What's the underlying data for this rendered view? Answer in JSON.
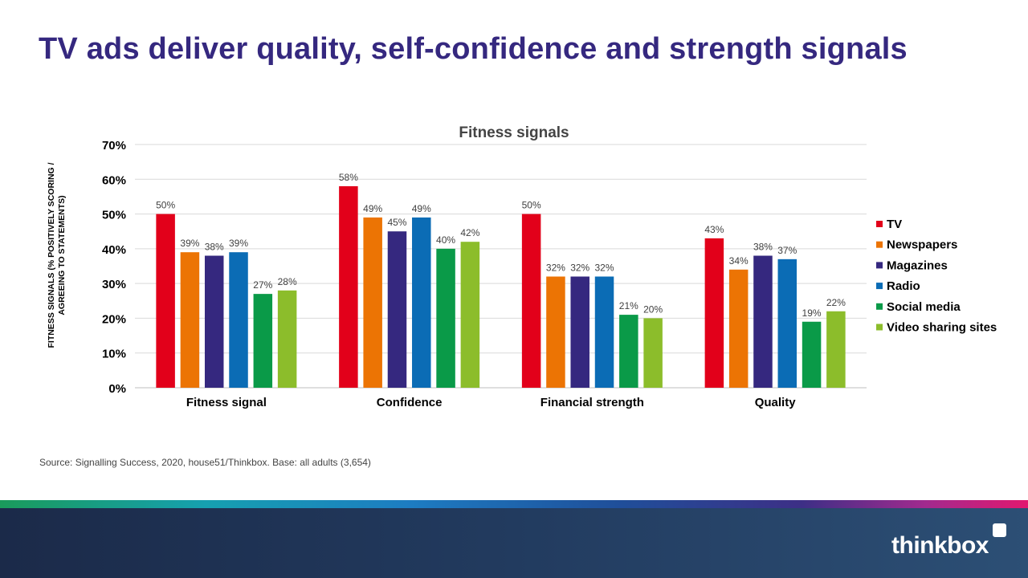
{
  "page": {
    "title": "TV ads deliver quality, self-confidence and strength signals",
    "source": "Source: Signalling Success, 2020, house51/Thinkbox. Base: all adults (3,654)",
    "logo": "thinkbox"
  },
  "chart_data": {
    "type": "bar",
    "title": "Fitness signals",
    "ylabel_lines": [
      "FITNESS SIGNALS (% POSITIVELY SCORING /",
      "AGREEING TO STATEMENTS)"
    ],
    "xlabel": "",
    "ylim": [
      0,
      70
    ],
    "yticks": [
      0,
      10,
      20,
      30,
      40,
      50,
      60,
      70
    ],
    "tick_suffix": "%",
    "categories": [
      "Fitness signal",
      "Confidence",
      "Financial strength",
      "Quality"
    ],
    "series": [
      {
        "name": "TV",
        "color": "#e2001a",
        "values": [
          50,
          58,
          50,
          43
        ]
      },
      {
        "name": "Newspapers",
        "color": "#ec7404",
        "values": [
          39,
          49,
          32,
          34
        ]
      },
      {
        "name": "Magazines",
        "color": "#35287f",
        "values": [
          38,
          45,
          32,
          38
        ]
      },
      {
        "name": "Radio",
        "color": "#0b6cb5",
        "values": [
          39,
          49,
          32,
          37
        ]
      },
      {
        "name": "Social media",
        "color": "#0a9a48",
        "values": [
          27,
          40,
          21,
          19
        ]
      },
      {
        "name": "Video sharing sites",
        "color": "#8cbd2b",
        "values": [
          28,
          42,
          20,
          22
        ]
      }
    ],
    "legend_position": "right"
  }
}
